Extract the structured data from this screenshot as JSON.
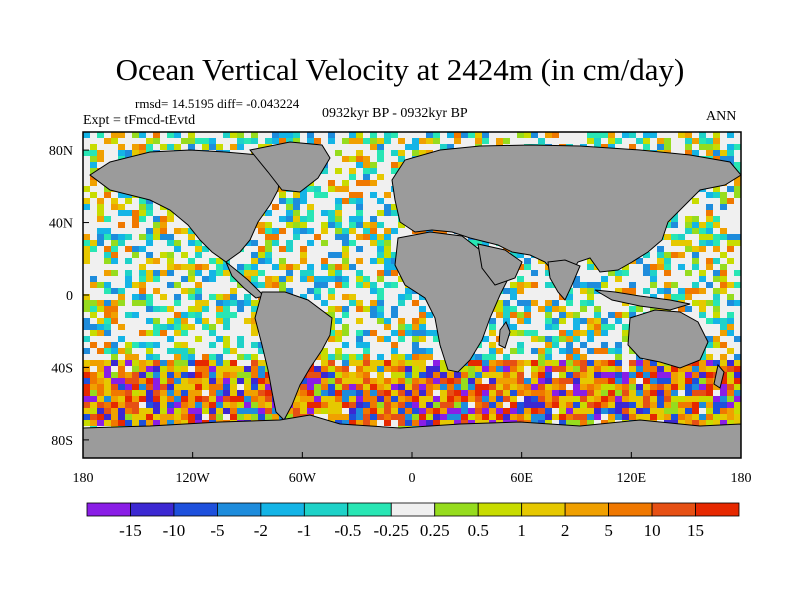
{
  "title": "Ocean Vertical Velocity at 2424m (in cm/day)",
  "stats": "rmsd= 14.5195 diff= -0.043224",
  "experiment": "Expt = tFmcd-tEvtd",
  "period": "0932kyr BP - 0932kyr BP",
  "season": "ANN",
  "map": {
    "projection": "cylindrical equidistant",
    "lon_range": [
      -180,
      180
    ],
    "lat_range": [
      -90,
      90
    ],
    "land_color": "#9b9b9b",
    "x_ticks": [
      {
        "value": -180,
        "label": "180"
      },
      {
        "value": -120,
        "label": "120W"
      },
      {
        "value": -60,
        "label": "60W"
      },
      {
        "value": 0,
        "label": "0"
      },
      {
        "value": 60,
        "label": "60E"
      },
      {
        "value": 120,
        "label": "120E"
      },
      {
        "value": 180,
        "label": "180"
      }
    ],
    "y_ticks": [
      {
        "value": 80,
        "label": "80N"
      },
      {
        "value": 40,
        "label": "40N"
      },
      {
        "value": 0,
        "label": "0"
      },
      {
        "value": -40,
        "label": "40S"
      },
      {
        "value": -80,
        "label": "80S"
      }
    ]
  },
  "colorbar": {
    "colors": [
      "#8a1ee6",
      "#3c28d2",
      "#1e50dc",
      "#1e8cdc",
      "#14b4e6",
      "#1ed2c8",
      "#28e6b4",
      "#f0f0f0",
      "#96dc1e",
      "#c8dc00",
      "#e6c800",
      "#f0a000",
      "#f07800",
      "#e65014",
      "#e62800"
    ],
    "labels": [
      "-15",
      "-10",
      "-5",
      "-2",
      "-1",
      "-0.5",
      "-0.25",
      "0.25",
      "0.5",
      "1",
      "2",
      "5",
      "10",
      "15"
    ]
  }
}
